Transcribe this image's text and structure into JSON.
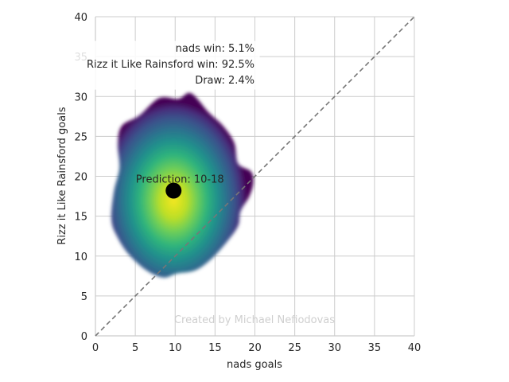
{
  "chart_data": {
    "type": "heatmap",
    "subtype": "kde-density",
    "xlabel": "nads goals",
    "ylabel": "Rizz it Like Rainsford goals",
    "xlim": [
      0,
      40
    ],
    "ylim": [
      0,
      40
    ],
    "x_ticks": [
      "0",
      "5",
      "10",
      "15",
      "20",
      "25",
      "30",
      "35",
      "40"
    ],
    "y_ticks": [
      "0",
      "5",
      "10",
      "15",
      "20",
      "25",
      "30",
      "35",
      "40"
    ],
    "grid": true,
    "colormap": "viridis",
    "diagonal_line": {
      "from": [
        0,
        0
      ],
      "to": [
        40,
        40
      ],
      "style": "dashed",
      "color": "#777777"
    },
    "prediction_point": {
      "x": 9.8,
      "y": 18.2,
      "color": "#000000"
    },
    "prediction_label": "Prediction: 10-18",
    "legend_position": "top-center",
    "legend": [
      {
        "label": "nads win: 5.1%"
      },
      {
        "label": "Rizz it Like Rainsford win: 92.5%"
      },
      {
        "label": "Draw: 2.4%"
      }
    ],
    "density_outline": [
      [
        8.5,
        7.3
      ],
      [
        10.2,
        7.8
      ],
      [
        12.5,
        8.2
      ],
      [
        14.5,
        9.6
      ],
      [
        16.5,
        11.8
      ],
      [
        17.9,
        13.8
      ],
      [
        18.2,
        15.6
      ],
      [
        19.3,
        17.5
      ],
      [
        19.8,
        19.2
      ],
      [
        19.5,
        20.6
      ],
      [
        17.9,
        21.6
      ],
      [
        17.4,
        24.2
      ],
      [
        16.0,
        26.3
      ],
      [
        14.2,
        28.0
      ],
      [
        12.0,
        30.4
      ],
      [
        10.4,
        29.7
      ],
      [
        8.0,
        29.8
      ],
      [
        5.5,
        27.6
      ],
      [
        3.3,
        26.3
      ],
      [
        2.8,
        24.0
      ],
      [
        3.0,
        21.0
      ],
      [
        2.3,
        18.0
      ],
      [
        2.0,
        14.5
      ],
      [
        2.8,
        12.3
      ],
      [
        4.2,
        10.2
      ],
      [
        6.4,
        8.2
      ]
    ],
    "density_center": [
      9.8,
      17.0
    ]
  },
  "watermark": "Created by Michael Nefiodovas",
  "colors": {
    "grid": "#cccccc",
    "viridis_low": "#440154",
    "viridis_mid": "#21908c",
    "viridis_high": "#fde725"
  }
}
